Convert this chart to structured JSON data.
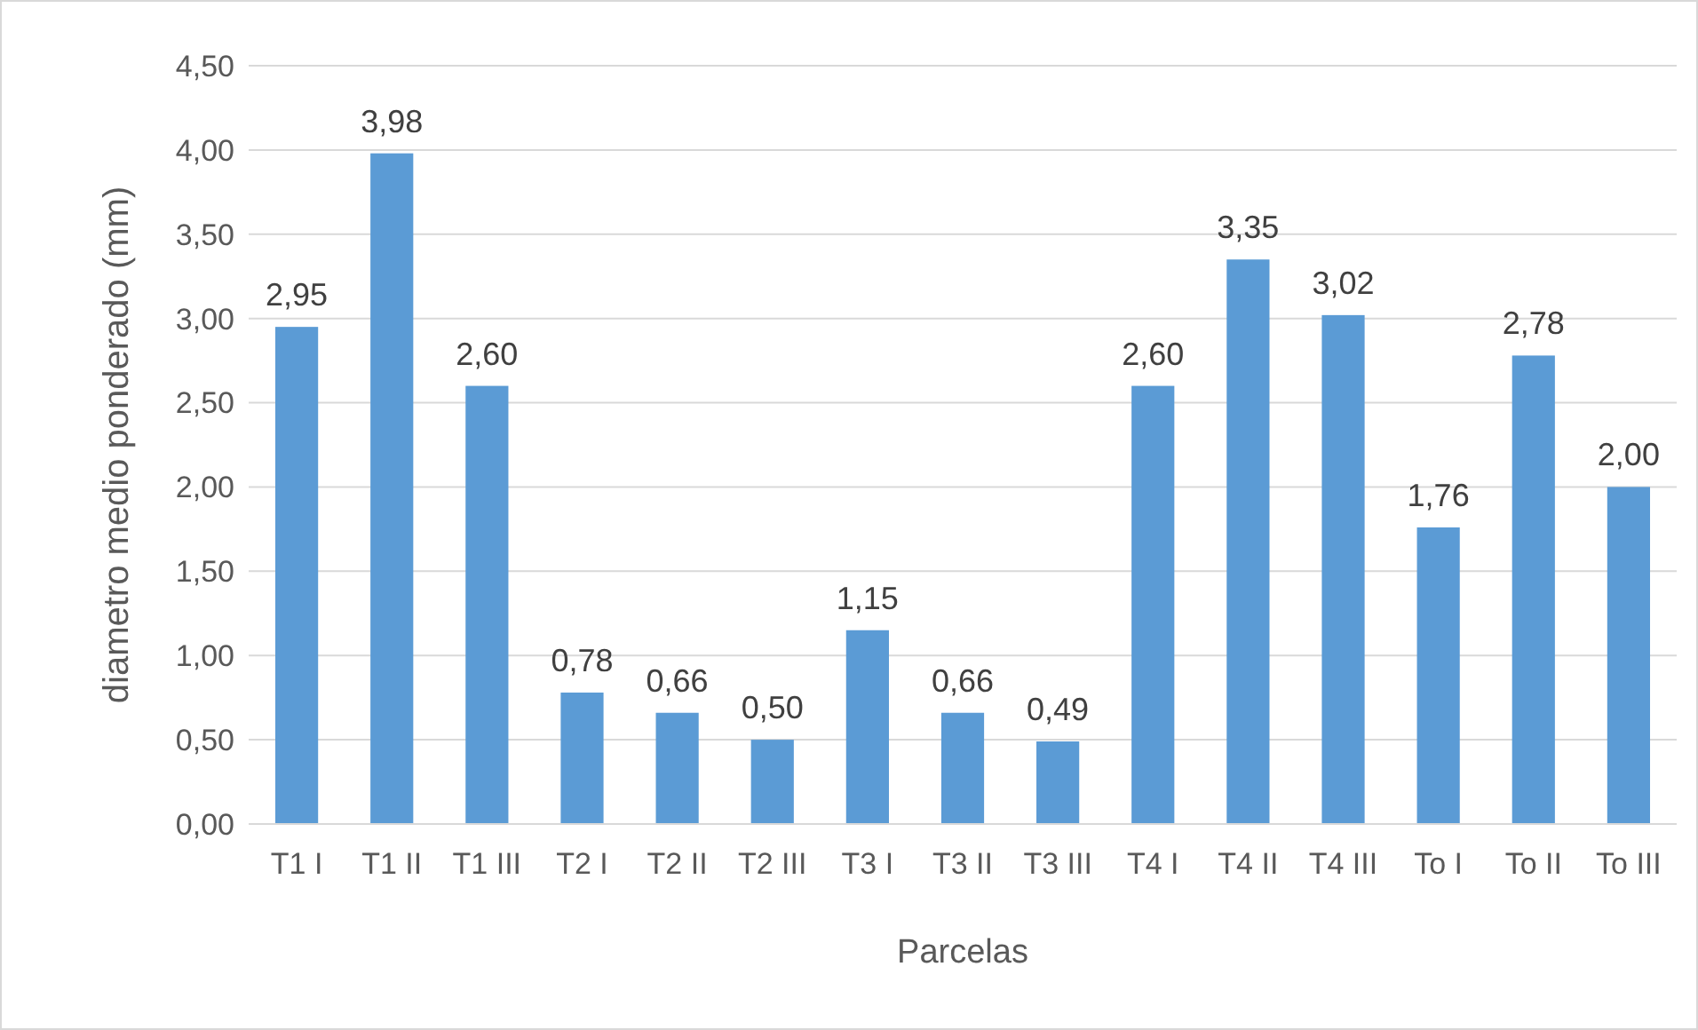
{
  "chart_data": {
    "type": "bar",
    "xlabel": "Parcelas",
    "ylabel": "diametro medio ponderado (mm)",
    "categories": [
      "T1 I",
      "T1 II",
      "T1 III",
      "T2 I",
      "T2 II",
      "T2 III",
      "T3 I",
      "T3 II",
      "T3 III",
      "T4 I",
      "T4 II",
      "T4 III",
      "To I",
      "To II",
      "To III"
    ],
    "values": [
      2.95,
      3.98,
      2.6,
      0.78,
      0.66,
      0.5,
      1.15,
      0.66,
      0.49,
      2.6,
      3.35,
      3.02,
      1.76,
      2.78,
      2.0
    ],
    "value_labels": [
      "2,95",
      "3,98",
      "2,60",
      "0,78",
      "0,66",
      "0,50",
      "1,15",
      "0,66",
      "0,49",
      "2,60",
      "3,35",
      "3,02",
      "1,76",
      "2,78",
      "2,00"
    ],
    "color": "#5b9bd5",
    "ylim": [
      0,
      4.5
    ],
    "yticks": [
      {
        "value": 0,
        "label": "0,00"
      },
      {
        "value": 0.5,
        "label": "0,50"
      },
      {
        "value": 1,
        "label": "1,00"
      },
      {
        "value": 1.5,
        "label": "1,50"
      },
      {
        "value": 2,
        "label": "2,00"
      },
      {
        "value": 2.5,
        "label": "2,50"
      },
      {
        "value": 3,
        "label": "3,00"
      },
      {
        "value": 3.5,
        "label": "3,50"
      },
      {
        "value": 4,
        "label": "4,00"
      },
      {
        "value": 4.5,
        "label": "4,50"
      }
    ],
    "grid": "y"
  }
}
